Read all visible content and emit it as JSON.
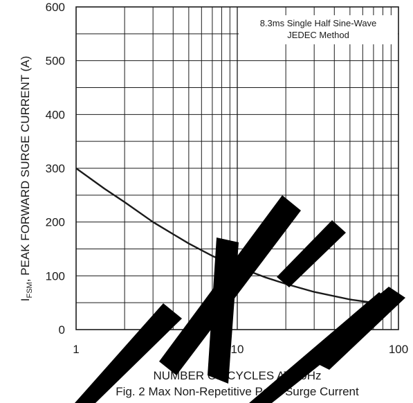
{
  "chart_data": {
    "type": "line",
    "x_scale": "log",
    "xlim": [
      1,
      100
    ],
    "ylim": [
      0,
      600
    ],
    "x_ticks": [
      "1",
      "10",
      "100"
    ],
    "y_ticks": [
      "0",
      "100",
      "200",
      "300",
      "400",
      "500",
      "600"
    ],
    "xlabel": "NUMBER OF CYCLES AT 60Hz",
    "ylabel_prefix": "I",
    "ylabel_sub": "FSM",
    "ylabel_rest": ", PEAK FORWARD SURGE CURRENT (A)",
    "grid": true,
    "annotation_line1": "8.3ms Single Half Sine-Wave",
    "annotation_line2": "JEDEC Method",
    "series": [
      {
        "x": [
          1,
          1.5,
          2,
          3,
          5,
          7,
          10,
          15,
          20,
          30,
          50,
          70,
          100
        ],
        "y": [
          300,
          262,
          237,
          200,
          160,
          137,
          117,
          97,
          85,
          70,
          56,
          50,
          47
        ]
      }
    ],
    "colors": {
      "line": "#1a1a1a",
      "grid": "#1a1a1a",
      "watermark": "#000000"
    }
  },
  "caption": "Fig. 2  Max Non-Repetitive Peak Surge Current"
}
